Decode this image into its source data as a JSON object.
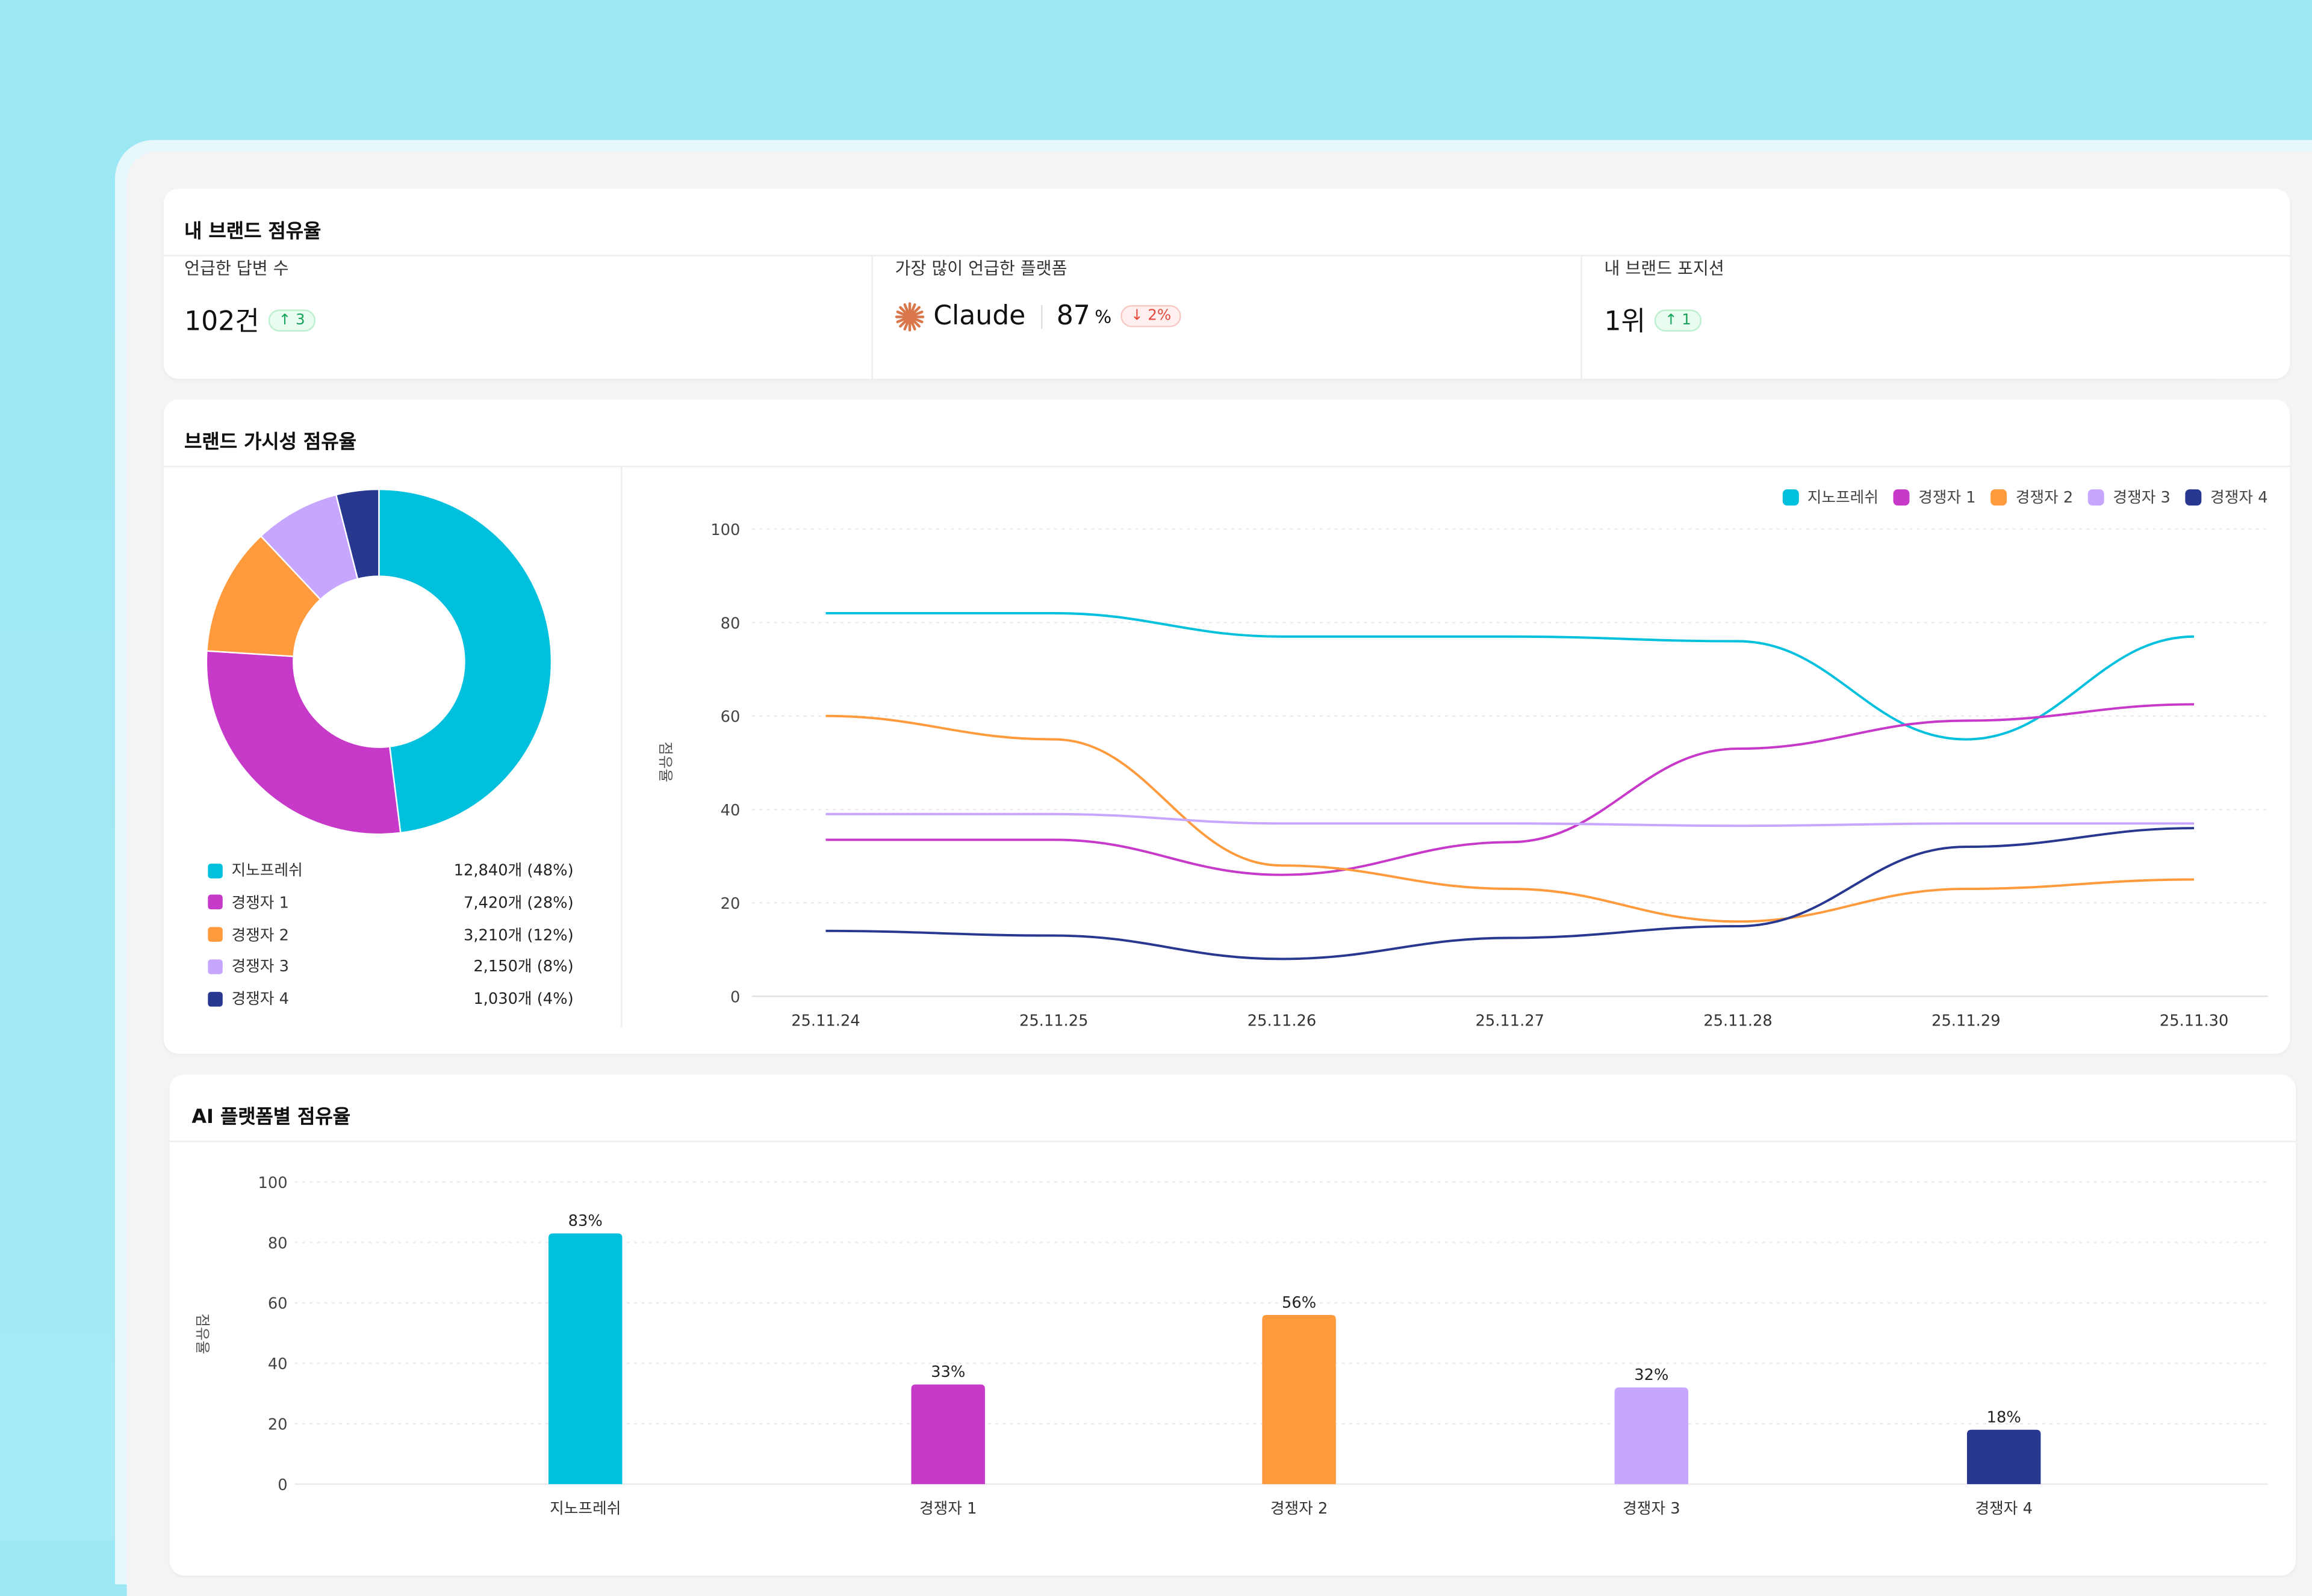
{
  "colors": {
    "brand": "#00C0DE",
    "comp1": "#C639C9",
    "comp2": "#FF9A3D",
    "comp3": "#C7A6FF",
    "comp4": "#283891",
    "up": "#15A35A",
    "down": "#E2483C",
    "claude": "#D9774B"
  },
  "summary": {
    "title": "내 브랜드 점유율",
    "kpis": [
      {
        "label": "언급한 답변 수",
        "value": "102건",
        "delta": "↑ 3",
        "trend": "up"
      },
      {
        "label": "가장 많이 언급한 플랫폼",
        "icon": "claude-logo-icon",
        "platform": "Claude",
        "value": "87",
        "unit": "%",
        "delta": "↓ 2%",
        "trend": "down"
      },
      {
        "label": "내 브랜드 포지션",
        "value": "1위",
        "delta": "↑ 1",
        "trend": "up"
      }
    ]
  },
  "visibility": {
    "title": "브랜드 가시성 점유율",
    "legend": [
      {
        "name": "지노프레쉬",
        "value": "12,840개 (48%)"
      },
      {
        "name": "경쟁자 1",
        "value": "7,420개 (28%)"
      },
      {
        "name": "경쟁자 2",
        "value": "3,210개 (12%)"
      },
      {
        "name": "경쟁자 3",
        "value": "2,150개 (8%)"
      },
      {
        "name": "경쟁자 4",
        "value": "1,030개 (4%)"
      }
    ]
  },
  "platform": {
    "title": "AI 플랫폼별 점유율"
  },
  "chart_data": [
    {
      "type": "pie",
      "donut": true,
      "categories": [
        "지노프레쉬",
        "경쟁자 1",
        "경쟁자 2",
        "경쟁자 3",
        "경쟁자 4"
      ],
      "values": [
        48,
        28,
        12,
        8,
        4
      ]
    },
    {
      "type": "line",
      "x": [
        "25.11.24",
        "25.11.25",
        "25.11.26",
        "25.11.27",
        "25.11.28",
        "25.11.29",
        "25.11.30"
      ],
      "ylabel": "점유율",
      "ylim": [
        0,
        100
      ],
      "yticks": [
        0,
        20,
        40,
        60,
        80,
        100
      ],
      "grid": true,
      "legend": "top-right",
      "series": [
        {
          "name": "지노프레쉬",
          "values": [
            82,
            82,
            77,
            77,
            76,
            55,
            77
          ]
        },
        {
          "name": "경쟁자 1",
          "values": [
            33.5,
            33.5,
            26,
            33,
            53,
            59,
            62.5
          ]
        },
        {
          "name": "경쟁자 2",
          "values": [
            60,
            55,
            28,
            23,
            16,
            23,
            25
          ]
        },
        {
          "name": "경쟁자 3",
          "values": [
            39,
            39,
            37,
            37,
            36.5,
            37,
            37
          ]
        },
        {
          "name": "경쟁자 4",
          "values": [
            14,
            13,
            8,
            12.5,
            15,
            32,
            36
          ]
        }
      ]
    },
    {
      "type": "bar",
      "categories": [
        "지노프레쉬",
        "경쟁자 1",
        "경쟁자 2",
        "경쟁자 3",
        "경쟁자 4"
      ],
      "values": [
        83,
        33,
        56,
        32,
        18
      ],
      "labels": [
        "83%",
        "33%",
        "56%",
        "32%",
        "18%"
      ],
      "ylabel": "점유율",
      "ylim": [
        0,
        100
      ],
      "yticks": [
        0,
        20,
        40,
        60,
        80,
        100
      ],
      "grid": true
    }
  ]
}
